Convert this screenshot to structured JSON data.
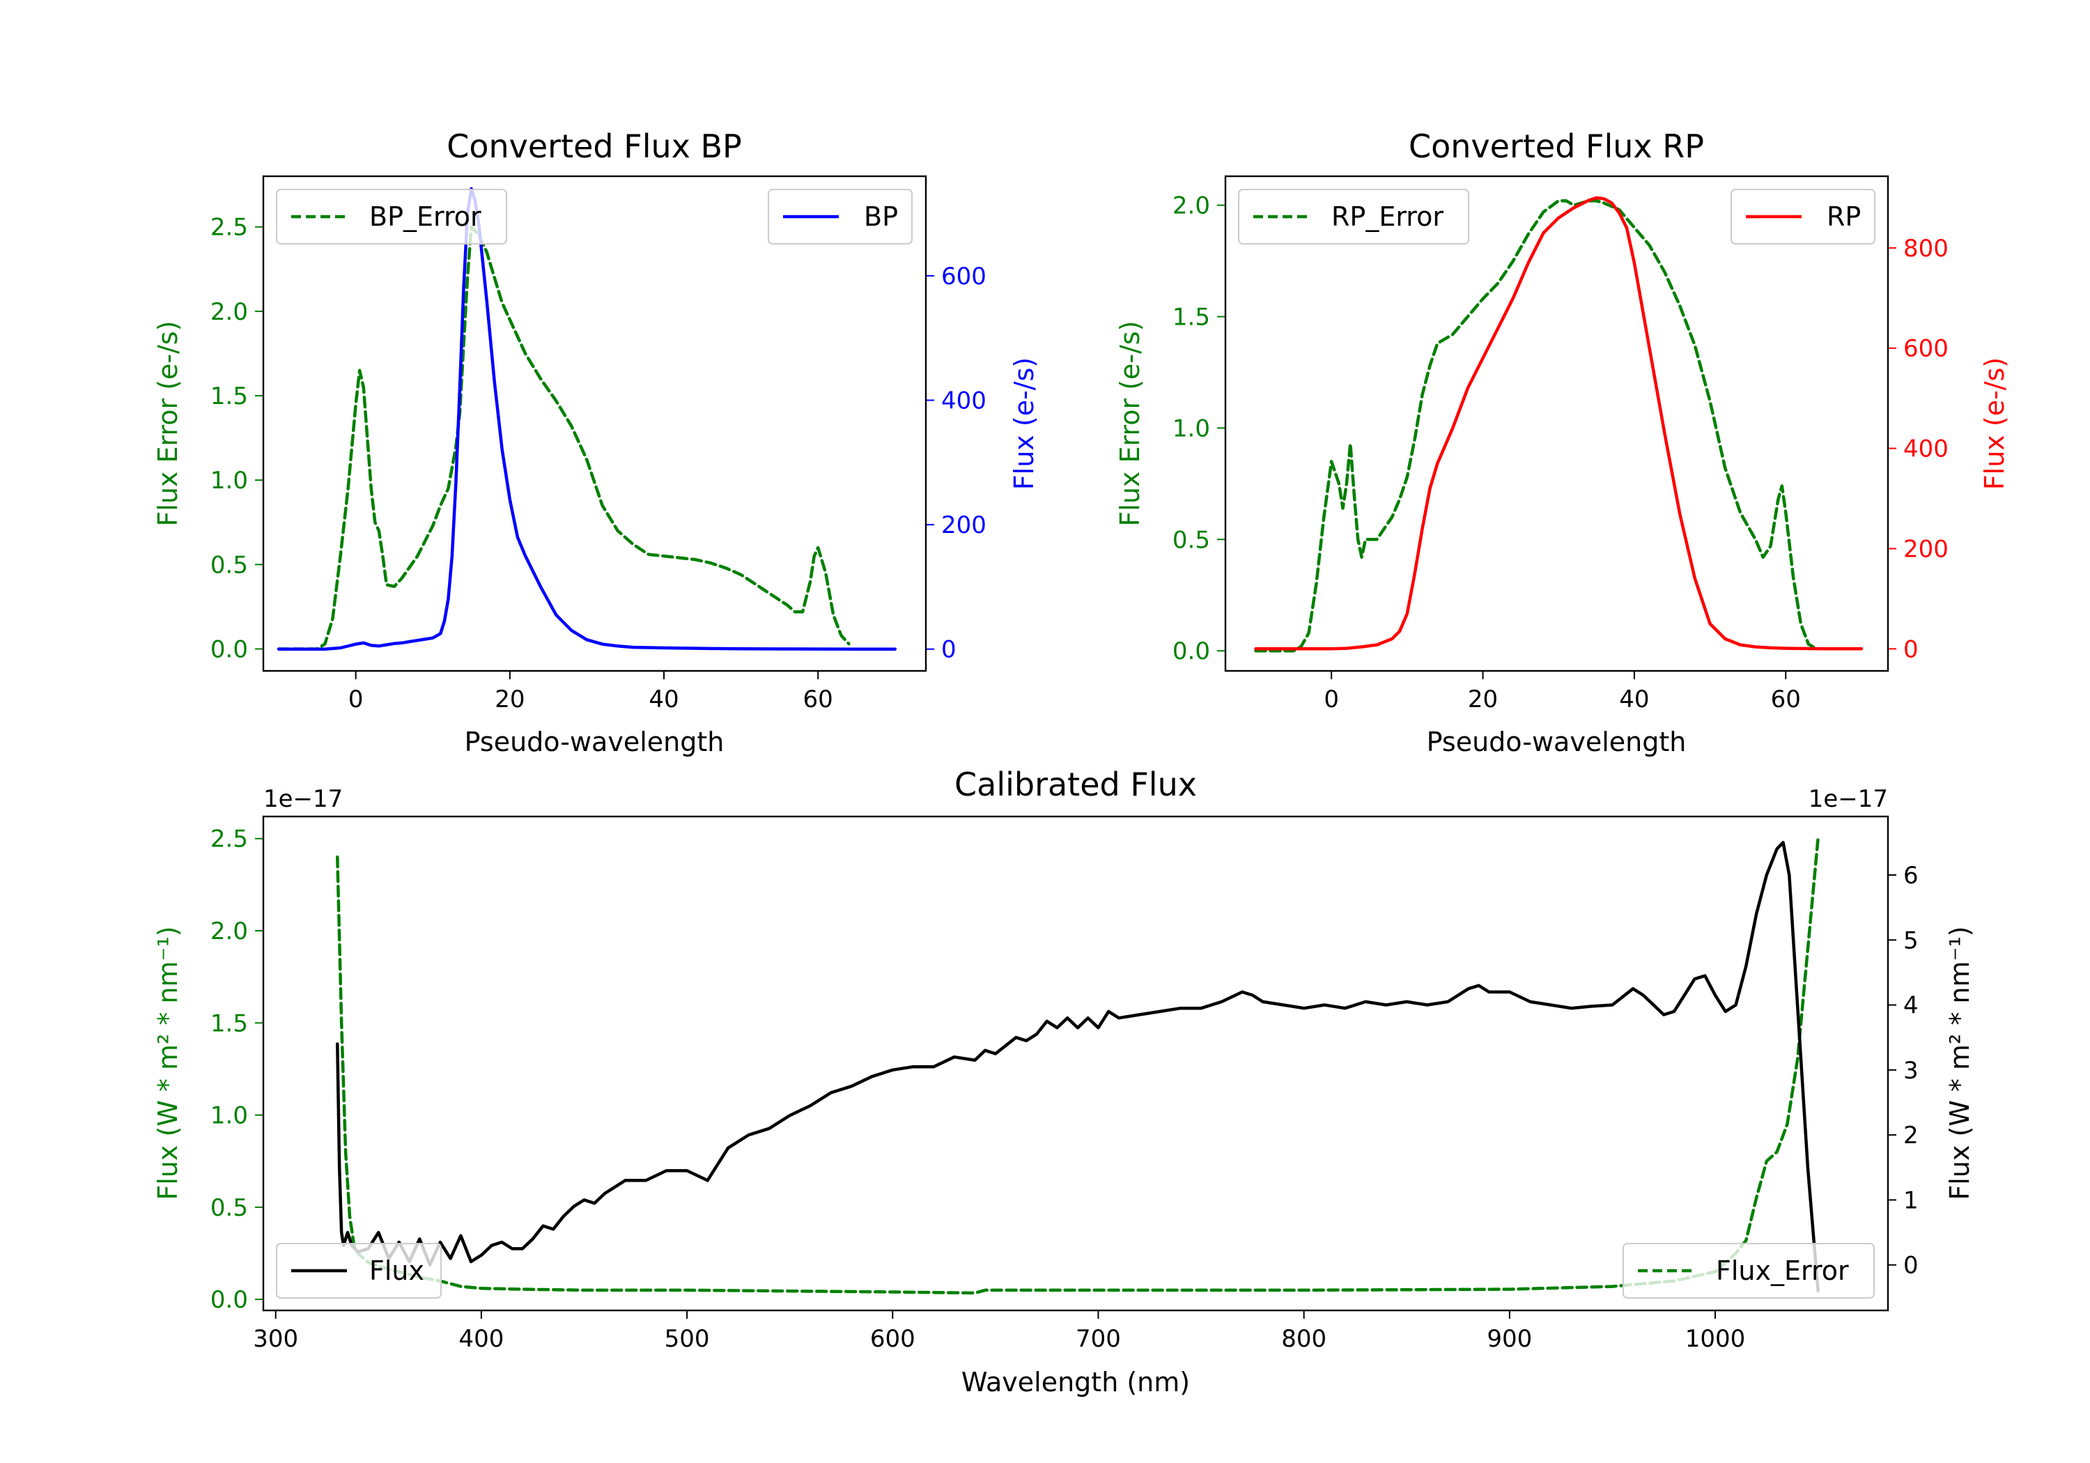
{
  "colors": {
    "bp": "#0000ff",
    "rp": "#ff0000",
    "error": "#008000",
    "flux": "#000000"
  },
  "chart_data": [
    {
      "id": "bp",
      "type": "line",
      "title": "Converted Flux BP",
      "xlabel": "Pseudo-wavelength",
      "ylabel_left": "Flux Error (e-/s)",
      "ylabel_right": "Flux (e-/s)",
      "xlim": [
        -12,
        74
      ],
      "ylim_left": [
        -0.13,
        2.8
      ],
      "ylim_right": [
        -35,
        760
      ],
      "xticks": [
        0,
        20,
        40,
        60
      ],
      "yticks_left": [
        0.0,
        0.5,
        1.0,
        1.5,
        2.0,
        2.5
      ],
      "yticks_right": [
        0,
        200,
        400,
        600
      ],
      "ytick_labels_left": [
        "0.0",
        "0.5",
        "1.0",
        "1.5",
        "2.0",
        "2.5"
      ],
      "legend_left": "BP_Error",
      "legend_right": "BP",
      "series": [
        {
          "name": "BP_Error",
          "axis": "left",
          "style": "dashed",
          "color": "error",
          "x": [
            -10,
            -5,
            -4,
            -3,
            -2,
            -1,
            0,
            0.5,
            1,
            2,
            2.5,
            3,
            3.5,
            4,
            5,
            6,
            8,
            10,
            11,
            12,
            13,
            13.5,
            14,
            14.5,
            15,
            16,
            17,
            18,
            19,
            20,
            22,
            24,
            26,
            28,
            30,
            32,
            34,
            36,
            38,
            40,
            42,
            44,
            46,
            48,
            50,
            52,
            54,
            56,
            57,
            58,
            59,
            59.5,
            60,
            61,
            62,
            63,
            64
          ],
          "y": [
            0,
            0,
            0.03,
            0.18,
            0.55,
            0.95,
            1.45,
            1.65,
            1.55,
            0.95,
            0.75,
            0.7,
            0.55,
            0.38,
            0.37,
            0.42,
            0.55,
            0.73,
            0.85,
            0.95,
            1.2,
            1.4,
            1.8,
            2.2,
            2.5,
            2.45,
            2.35,
            2.2,
            2.05,
            1.95,
            1.75,
            1.6,
            1.47,
            1.32,
            1.12,
            0.85,
            0.7,
            0.62,
            0.56,
            0.55,
            0.54,
            0.53,
            0.51,
            0.48,
            0.44,
            0.38,
            0.32,
            0.26,
            0.22,
            0.22,
            0.4,
            0.55,
            0.6,
            0.45,
            0.2,
            0.08,
            0.03
          ]
        },
        {
          "name": "BP",
          "axis": "right",
          "style": "solid",
          "color": "bp",
          "x": [
            -10,
            -4,
            -2,
            0,
            1,
            2,
            3,
            4,
            5,
            6,
            7,
            8,
            9,
            10,
            11,
            11.5,
            12,
            12.5,
            13,
            13.5,
            14,
            14.5,
            15,
            15.5,
            16,
            17,
            18,
            19,
            20,
            21,
            22,
            24,
            26,
            28,
            30,
            32,
            34,
            36,
            40,
            45,
            50,
            55,
            60,
            65,
            70
          ],
          "y": [
            0,
            0,
            2,
            8,
            10,
            6,
            5,
            7,
            9,
            10,
            12,
            14,
            16,
            18,
            25,
            45,
            80,
            150,
            270,
            420,
            580,
            700,
            740,
            720,
            680,
            560,
            430,
            320,
            240,
            180,
            150,
            100,
            55,
            30,
            15,
            8,
            5,
            3,
            2,
            1,
            0.5,
            0.3,
            0.2,
            0,
            0
          ]
        }
      ]
    },
    {
      "id": "rp",
      "type": "line",
      "title": "Converted Flux RP",
      "xlabel": "Pseudo-wavelength",
      "ylabel_left": "Flux Error (e-/s)",
      "ylabel_right": "Flux (e-/s)",
      "xlim": [
        -14,
        73.5
      ],
      "ylim_left": [
        -0.09,
        2.13
      ],
      "ylim_right": [
        -44,
        943
      ],
      "xticks": [
        0,
        20,
        40,
        60
      ],
      "yticks_left": [
        0.0,
        0.5,
        1.0,
        1.5,
        2.0
      ],
      "yticks_right": [
        0,
        200,
        400,
        600,
        800
      ],
      "ytick_labels_left": [
        "0.0",
        "0.5",
        "1.0",
        "1.5",
        "2.0"
      ],
      "legend_left": "RP_Error",
      "legend_right": "RP",
      "series": [
        {
          "name": "RP_Error",
          "axis": "left",
          "style": "dashed",
          "color": "error",
          "x": [
            -10,
            -5,
            -4,
            -3,
            -2,
            -1,
            0,
            1,
            1.5,
            2,
            2.5,
            3,
            3.5,
            4,
            4.5,
            5,
            6,
            7,
            8,
            9,
            10,
            11,
            12,
            13,
            14,
            16,
            18,
            20,
            22,
            24,
            26,
            28,
            30,
            31,
            32,
            33,
            34,
            35,
            36,
            38,
            40,
            42,
            44,
            46,
            48,
            50,
            52,
            54,
            55,
            56,
            57,
            58,
            59,
            59.5,
            60,
            61,
            62,
            63,
            64
          ],
          "y": [
            0,
            0,
            0.02,
            0.08,
            0.3,
            0.6,
            0.85,
            0.75,
            0.64,
            0.75,
            0.93,
            0.7,
            0.5,
            0.42,
            0.5,
            0.5,
            0.5,
            0.55,
            0.6,
            0.68,
            0.78,
            0.95,
            1.15,
            1.28,
            1.38,
            1.42,
            1.5,
            1.58,
            1.65,
            1.75,
            1.87,
            1.97,
            2.02,
            2.02,
            2.0,
            2.01,
            2.02,
            2.02,
            2.01,
            1.98,
            1.9,
            1.82,
            1.7,
            1.55,
            1.37,
            1.12,
            0.82,
            0.62,
            0.56,
            0.5,
            0.42,
            0.47,
            0.68,
            0.74,
            0.62,
            0.33,
            0.12,
            0.03,
            0.01
          ]
        },
        {
          "name": "RP",
          "axis": "right",
          "style": "solid",
          "color": "rp",
          "x": [
            -10,
            -5,
            0,
            2,
            4,
            6,
            8,
            9,
            10,
            11,
            12,
            13,
            14,
            16,
            18,
            20,
            22,
            24,
            26,
            28,
            30,
            32,
            34,
            35,
            36,
            37,
            38,
            39,
            40,
            42,
            44,
            46,
            48,
            50,
            52,
            54,
            56,
            58,
            60,
            65,
            70
          ],
          "y": [
            0,
            0,
            0,
            1,
            4,
            8,
            20,
            35,
            70,
            150,
            240,
            320,
            370,
            440,
            520,
            580,
            640,
            700,
            770,
            830,
            860,
            880,
            895,
            900,
            898,
            890,
            870,
            840,
            770,
            600,
            430,
            270,
            140,
            50,
            20,
            8,
            4,
            2,
            1,
            0,
            0
          ]
        }
      ]
    },
    {
      "id": "calibrated",
      "type": "line",
      "title": "Calibrated Flux",
      "xlabel": "Wavelength (nm)",
      "ylabel_left": "Flux (W * m² * nm⁻¹)",
      "ylabel_right": "Flux (W * m² * nm⁻¹)",
      "offset_left": "1e−17",
      "offset_right": "1e−17",
      "xlim": [
        294,
        1084
      ],
      "ylim_left": [
        -0.06,
        2.62
      ],
      "ylim_right": [
        -0.7,
        6.9
      ],
      "xticks": [
        300,
        400,
        500,
        600,
        700,
        800,
        900,
        1000
      ],
      "yticks_left": [
        0.0,
        0.5,
        1.0,
        1.5,
        2.0,
        2.5
      ],
      "yticks_right": [
        0,
        1,
        2,
        3,
        4,
        5,
        6
      ],
      "ytick_labels_left": [
        "0.0",
        "0.5",
        "1.0",
        "1.5",
        "2.0",
        "2.5"
      ],
      "legend_left": "Flux",
      "legend_right": "Flux_Error",
      "series": [
        {
          "name": "Flux_Error",
          "axis": "left",
          "style": "dashed",
          "color": "error",
          "x": [
            330,
            332,
            334,
            336,
            338,
            340,
            345,
            350,
            360,
            370,
            380,
            390,
            400,
            420,
            450,
            500,
            550,
            600,
            640,
            645,
            650,
            700,
            800,
            900,
            950,
            980,
            1000,
            1010,
            1015,
            1020,
            1025,
            1030,
            1035,
            1040,
            1045,
            1050
          ],
          "y": [
            2.4,
            1.5,
            0.8,
            0.45,
            0.3,
            0.25,
            0.2,
            0.18,
            0.15,
            0.12,
            0.1,
            0.07,
            0.06,
            0.055,
            0.05,
            0.05,
            0.045,
            0.04,
            0.035,
            0.05,
            0.05,
            0.05,
            0.05,
            0.055,
            0.07,
            0.1,
            0.15,
            0.25,
            0.32,
            0.55,
            0.75,
            0.8,
            0.95,
            1.3,
            1.9,
            2.5
          ]
        },
        {
          "name": "Flux",
          "axis": "right",
          "style": "solid",
          "color": "flux",
          "x": [
            330,
            331,
            332,
            333,
            335,
            337,
            340,
            345,
            350,
            355,
            360,
            365,
            370,
            375,
            380,
            385,
            390,
            395,
            400,
            405,
            410,
            415,
            420,
            425,
            430,
            435,
            440,
            445,
            450,
            455,
            460,
            470,
            480,
            490,
            500,
            510,
            520,
            530,
            540,
            550,
            560,
            570,
            580,
            590,
            600,
            610,
            620,
            630,
            640,
            645,
            650,
            660,
            665,
            670,
            675,
            680,
            685,
            690,
            695,
            700,
            705,
            710,
            720,
            730,
            740,
            750,
            760,
            770,
            775,
            780,
            790,
            800,
            810,
            820,
            830,
            840,
            850,
            860,
            870,
            880,
            885,
            890,
            900,
            910,
            920,
            930,
            940,
            950,
            960,
            965,
            970,
            975,
            980,
            985,
            990,
            995,
            1000,
            1005,
            1010,
            1015,
            1020,
            1025,
            1030,
            1033,
            1036,
            1040,
            1045,
            1050
          ],
          "y": [
            3.4,
            1.5,
            0.5,
            0.3,
            0.5,
            0.3,
            0.2,
            0.25,
            0.5,
            0.1,
            0.35,
            0.05,
            0.4,
            0.0,
            0.35,
            0.1,
            0.45,
            0.05,
            0.15,
            0.3,
            0.35,
            0.25,
            0.25,
            0.4,
            0.6,
            0.55,
            0.75,
            0.9,
            1.0,
            0.95,
            1.1,
            1.3,
            1.3,
            1.45,
            1.45,
            1.3,
            1.8,
            2.0,
            2.1,
            2.3,
            2.45,
            2.65,
            2.75,
            2.9,
            3.0,
            3.05,
            3.05,
            3.2,
            3.15,
            3.3,
            3.25,
            3.5,
            3.45,
            3.55,
            3.75,
            3.65,
            3.8,
            3.65,
            3.8,
            3.65,
            3.9,
            3.8,
            3.85,
            3.9,
            3.95,
            3.95,
            4.05,
            4.2,
            4.15,
            4.05,
            4.0,
            3.95,
            4.0,
            3.95,
            4.05,
            4.0,
            4.05,
            4.0,
            4.05,
            4.25,
            4.3,
            4.2,
            4.2,
            4.05,
            4.0,
            3.95,
            3.98,
            4.0,
            4.25,
            4.15,
            4.0,
            3.85,
            3.9,
            4.15,
            4.4,
            4.45,
            4.15,
            3.9,
            4.0,
            4.6,
            5.4,
            6.0,
            6.4,
            6.5,
            6.0,
            4.0,
            1.5,
            -0.4
          ]
        }
      ]
    }
  ]
}
